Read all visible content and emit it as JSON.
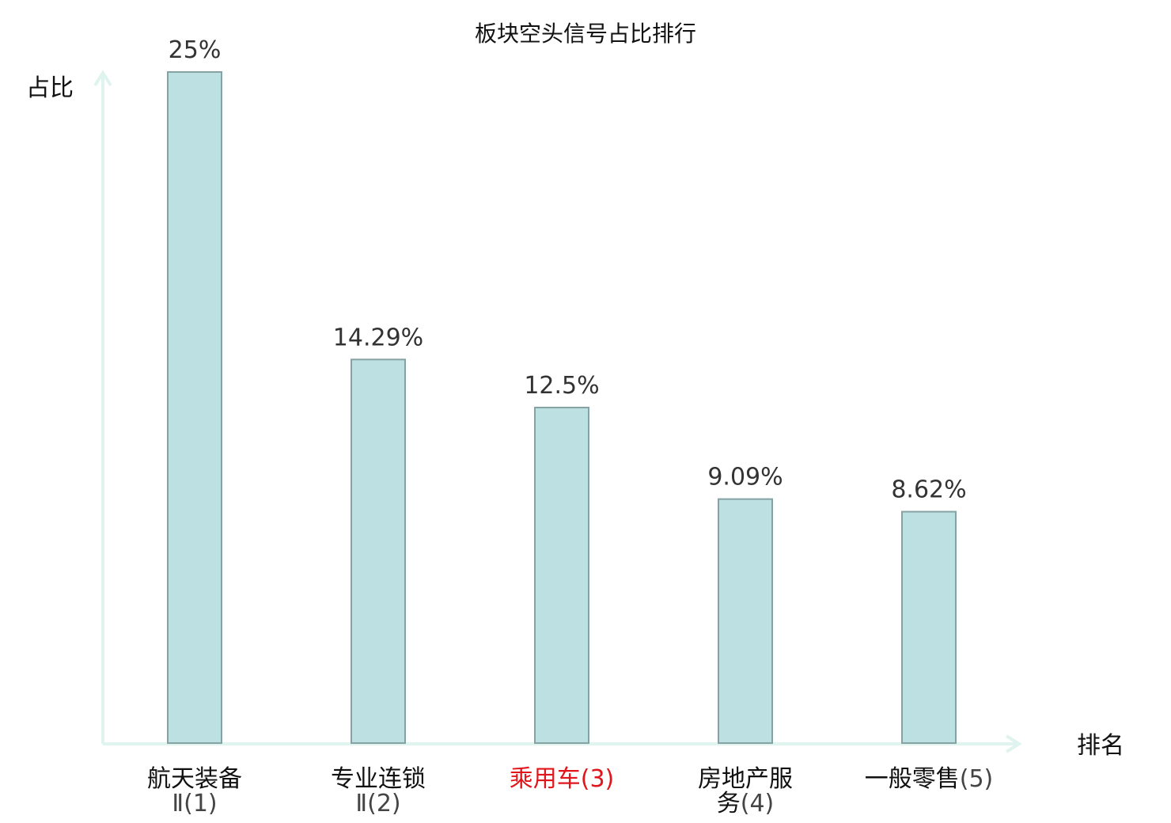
{
  "chart_data": {
    "type": "bar",
    "title": "板块空头信号占比排行",
    "ylabel": "占比",
    "xlabel": "排名",
    "ylim": [
      0,
      25
    ],
    "grid": false,
    "categories": [
      {
        "name": "航天装备",
        "suffix": "Ⅱ",
        "rank": "(1)",
        "highlight": false
      },
      {
        "name": "专业连锁",
        "suffix": "Ⅱ",
        "rank": "(2)",
        "highlight": false
      },
      {
        "name": "乘用车",
        "suffix": "",
        "rank": "(3)",
        "highlight": true
      },
      {
        "name": "房地产服务",
        "suffix": "",
        "rank": "(4)",
        "highlight": false
      },
      {
        "name": "一般零售",
        "suffix": "",
        "rank": "(5)",
        "highlight": false
      }
    ],
    "values": [
      25,
      14.29,
      12.5,
      9.09,
      8.62
    ],
    "value_labels": [
      "25%",
      "14.29%",
      "12.5%",
      "9.09%",
      "8.62%"
    ]
  },
  "colors": {
    "bar_fill": "#bde0e2",
    "bar_stroke": "#86a3a3",
    "axis": "#dff3ef",
    "highlight_text": "#e0161c",
    "category_text": "#111111",
    "rank_text": "#444444"
  }
}
